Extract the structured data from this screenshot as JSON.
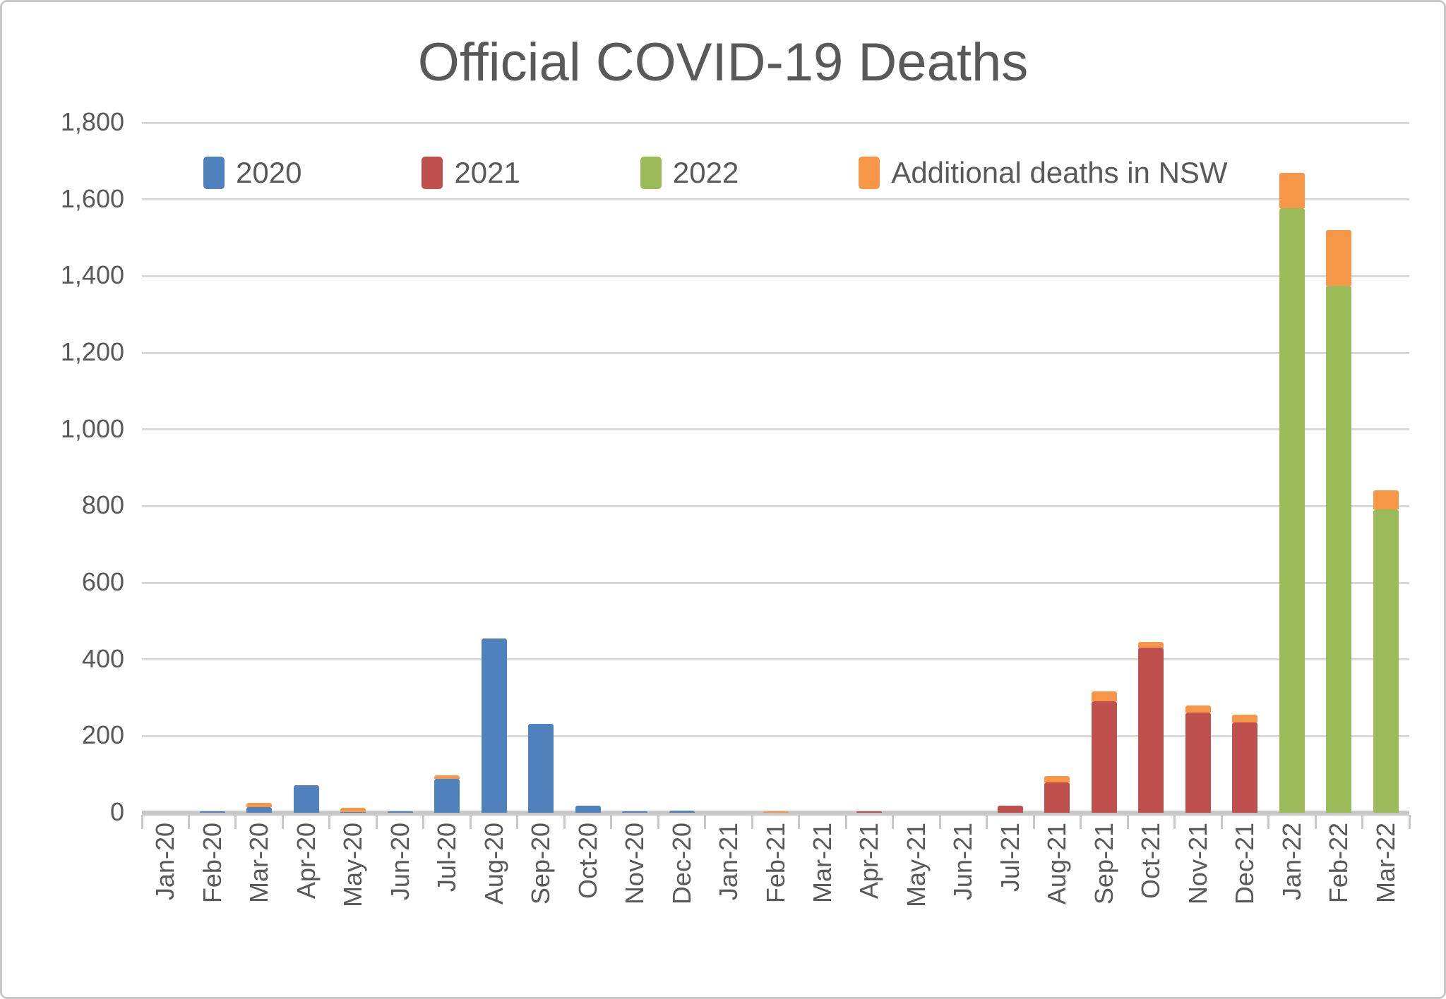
{
  "title": "Official COVID-19 Deaths",
  "legend": [
    {
      "label": "2020",
      "color": "#4F81BD"
    },
    {
      "label": "2021",
      "color": "#C0504D"
    },
    {
      "label": "2022",
      "color": "#9BBB59"
    },
    {
      "label": "Additional deaths in NSW",
      "color": "#F79646"
    }
  ],
  "y_axis": {
    "tick_labels": [
      "0",
      "200",
      "400",
      "600",
      "800",
      "1,000",
      "1,200",
      "1,400",
      "1,600",
      "1,800"
    ]
  },
  "chart_data": {
    "type": "bar",
    "stacked": true,
    "title": "Official COVID-19 Deaths",
    "xlabel": "",
    "ylabel": "",
    "ylim": [
      0,
      1800
    ],
    "ytick_step": 200,
    "grid": true,
    "legend_position": "top-left",
    "categories": [
      "Jan-20",
      "Feb-20",
      "Mar-20",
      "Apr-20",
      "May-20",
      "Jun-20",
      "Jul-20",
      "Aug-20",
      "Sep-20",
      "Oct-20",
      "Nov-20",
      "Dec-20",
      "Jan-21",
      "Feb-21",
      "Mar-21",
      "Apr-21",
      "May-21",
      "Jun-21",
      "Jul-21",
      "Aug-21",
      "Sep-21",
      "Oct-21",
      "Nov-21",
      "Dec-21",
      "Jan-22",
      "Feb-22",
      "Mar-22"
    ],
    "series": [
      {
        "name": "2020",
        "color": "#4F81BD",
        "values": [
          0,
          3,
          14,
          72,
          1,
          4,
          89,
          455,
          232,
          19,
          4,
          5,
          0,
          0,
          0,
          0,
          0,
          0,
          0,
          0,
          0,
          0,
          0,
          0,
          0,
          0,
          0
        ]
      },
      {
        "name": "2021",
        "color": "#C0504D",
        "values": [
          0,
          0,
          0,
          0,
          0,
          0,
          0,
          0,
          0,
          0,
          0,
          0,
          0,
          0,
          0,
          4,
          0,
          0,
          19,
          80,
          290,
          430,
          262,
          235,
          0,
          0,
          0
        ]
      },
      {
        "name": "2022",
        "color": "#9BBB59",
        "values": [
          0,
          0,
          0,
          0,
          0,
          0,
          0,
          0,
          0,
          0,
          0,
          0,
          0,
          0,
          0,
          0,
          0,
          0,
          0,
          0,
          0,
          0,
          0,
          0,
          1578,
          1375,
          791
        ]
      },
      {
        "name": "Additional deaths in NSW",
        "color": "#F79646",
        "values": [
          0,
          0,
          12,
          0,
          12,
          0,
          9,
          0,
          0,
          0,
          0,
          0,
          0,
          4,
          0,
          0,
          0,
          0,
          0,
          15,
          26,
          15,
          17,
          20,
          92,
          145,
          50
        ]
      }
    ]
  }
}
